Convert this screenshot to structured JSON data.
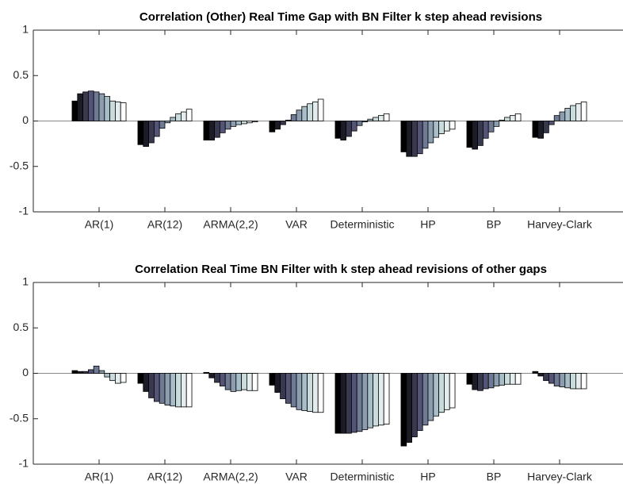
{
  "chart_data": [
    {
      "type": "bar",
      "title": "Correlation (Other) Real Time Gap with BN Filter k step ahead revisions",
      "categories": [
        "AR(1)",
        "AR(12)",
        "ARMA(2,2)",
        "VAR",
        "Deterministic",
        "HP",
        "BP",
        "Harvey-Clark"
      ],
      "ylim": [
        -1,
        1
      ],
      "yticks": [
        -1,
        -0.5,
        0,
        0.5,
        1
      ],
      "series": [
        {
          "color": "#000000",
          "values": [
            0.22,
            -0.26,
            -0.21,
            -0.12,
            -0.19,
            -0.34,
            -0.29,
            -0.18
          ]
        },
        {
          "color": "#1c1c27",
          "values": [
            0.3,
            -0.28,
            -0.21,
            -0.09,
            -0.21,
            -0.39,
            -0.31,
            -0.19
          ]
        },
        {
          "color": "#38384f",
          "values": [
            0.32,
            -0.24,
            -0.18,
            -0.04,
            -0.17,
            -0.39,
            -0.27,
            -0.13
          ]
        },
        {
          "color": "#545476",
          "values": [
            0.33,
            -0.17,
            -0.13,
            0.01,
            -0.11,
            -0.36,
            -0.19,
            -0.04
          ]
        },
        {
          "color": "#6f7b94",
          "values": [
            0.32,
            -0.08,
            -0.09,
            0.07,
            -0.05,
            -0.3,
            -0.12,
            0.06
          ]
        },
        {
          "color": "#8b9daf",
          "values": [
            0.3,
            -0.02,
            -0.06,
            0.12,
            -0.01,
            -0.24,
            -0.06,
            0.1
          ]
        },
        {
          "color": "#a7bec9",
          "values": [
            0.27,
            0.04,
            -0.04,
            0.16,
            0.02,
            -0.18,
            0.01,
            0.14
          ]
        },
        {
          "color": "#c9dbdb",
          "values": [
            0.22,
            0.08,
            -0.03,
            0.19,
            0.04,
            -0.14,
            0.04,
            0.17
          ]
        },
        {
          "color": "#e4eded",
          "values": [
            0.21,
            0.1,
            -0.02,
            0.21,
            0.06,
            -0.11,
            0.06,
            0.19
          ]
        },
        {
          "color": "#ffffff",
          "values": [
            0.2,
            0.13,
            -0.01,
            0.24,
            0.08,
            -0.09,
            0.08,
            0.21
          ]
        }
      ]
    },
    {
      "type": "bar",
      "title": "Correlation Real Time BN Filter with k step ahead revisions of other gaps",
      "categories": [
        "AR(1)",
        "AR(12)",
        "ARMA(2,2)",
        "VAR",
        "Deterministic",
        "HP",
        "BP",
        "Harvey-Clark"
      ],
      "ylim": [
        -1,
        1
      ],
      "yticks": [
        -1,
        -0.5,
        0,
        0.5,
        1
      ],
      "series": [
        {
          "color": "#000000",
          "values": [
            0.03,
            -0.11,
            0.01,
            -0.13,
            -0.66,
            -0.8,
            -0.12,
            0.02
          ]
        },
        {
          "color": "#1c1c27",
          "values": [
            0.02,
            -0.2,
            -0.05,
            -0.21,
            -0.66,
            -0.76,
            -0.18,
            -0.03
          ]
        },
        {
          "color": "#38384f",
          "values": [
            0.02,
            -0.27,
            -0.1,
            -0.28,
            -0.66,
            -0.7,
            -0.19,
            -0.08
          ]
        },
        {
          "color": "#545476",
          "values": [
            0.04,
            -0.31,
            -0.14,
            -0.33,
            -0.65,
            -0.63,
            -0.17,
            -0.11
          ]
        },
        {
          "color": "#6f7b94",
          "values": [
            0.08,
            -0.33,
            -0.18,
            -0.37,
            -0.64,
            -0.57,
            -0.16,
            -0.14
          ]
        },
        {
          "color": "#8b9daf",
          "values": [
            0.03,
            -0.35,
            -0.2,
            -0.4,
            -0.62,
            -0.52,
            -0.14,
            -0.15
          ]
        },
        {
          "color": "#a7bec9",
          "values": [
            -0.04,
            -0.36,
            -0.19,
            -0.41,
            -0.6,
            -0.47,
            -0.13,
            -0.16
          ]
        },
        {
          "color": "#c9dbdb",
          "values": [
            -0.08,
            -0.37,
            -0.18,
            -0.42,
            -0.58,
            -0.43,
            -0.12,
            -0.17
          ]
        },
        {
          "color": "#e4eded",
          "values": [
            -0.11,
            -0.37,
            -0.19,
            -0.43,
            -0.57,
            -0.4,
            -0.12,
            -0.17
          ]
        },
        {
          "color": "#ffffff",
          "values": [
            -0.1,
            -0.37,
            -0.19,
            -0.43,
            -0.56,
            -0.38,
            -0.12,
            -0.17
          ]
        }
      ]
    }
  ]
}
